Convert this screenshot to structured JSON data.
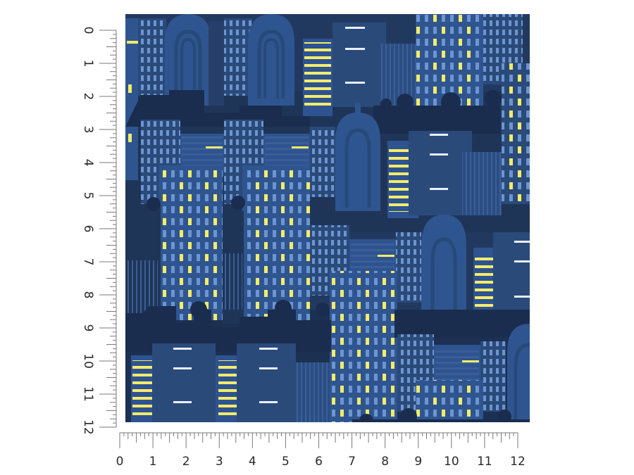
{
  "product": {
    "swatch_description": "Blue night city skyline pattern with lit windows",
    "units": "inches"
  },
  "colors": {
    "background": "#ffffff",
    "ruler": "#7a7a7a",
    "ruler_text": "#2a2a2a",
    "sky": "#1a2b4d",
    "building_dark": "#1f3558",
    "building_mid": "#2a4a7a",
    "building_light": "#3566a8",
    "window_blue": "#6d95cf",
    "window_yellow": "#f5ec6a",
    "window_white": "#e8f0ff"
  },
  "ruler": {
    "horizontal_labels": [
      "0",
      "1",
      "2",
      "3",
      "4",
      "5",
      "6",
      "7",
      "8",
      "9",
      "10",
      "11",
      "12"
    ],
    "vertical_labels": [
      "0",
      "1",
      "2",
      "3",
      "4",
      "5",
      "6",
      "7",
      "8",
      "9",
      "10",
      "11",
      "12"
    ]
  }
}
